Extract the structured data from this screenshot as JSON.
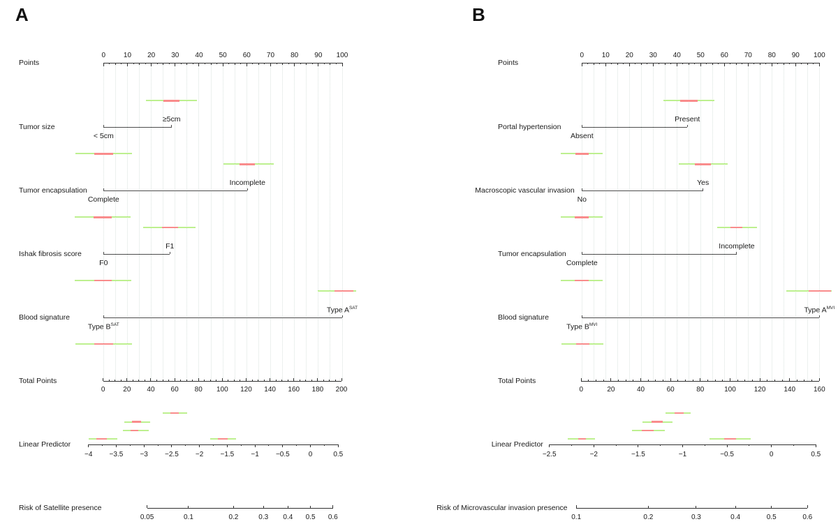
{
  "figure": {
    "background": "#ffffff"
  },
  "colors": {
    "density_green": "#bdf08f",
    "density_red": "#f98c8c",
    "gridline": "#d9e2de",
    "axis": "#303030",
    "bracket": "#4d4d4d",
    "text": "#1a1a1a"
  },
  "chart_data": [
    {
      "type": "nomogram",
      "panel": "A",
      "axes": {
        "points": {
          "label": "Points",
          "min": 0,
          "max": 100,
          "ticks": [
            {
              "v": 0,
              "label": "0"
            },
            {
              "v": 10,
              "label": "10"
            },
            {
              "v": 20,
              "label": "20"
            },
            {
              "v": 30,
              "label": "30"
            },
            {
              "v": 40,
              "label": "40"
            },
            {
              "v": 50,
              "label": "50"
            },
            {
              "v": 60,
              "label": "60"
            },
            {
              "v": 70,
              "label": "70"
            },
            {
              "v": 80,
              "label": "80"
            },
            {
              "v": 90,
              "label": "90"
            },
            {
              "v": 100,
              "label": "100"
            }
          ]
        },
        "total_points": {
          "label": "Total Points",
          "min": 0,
          "max": 200,
          "minor_step": 5,
          "major_step": 20,
          "ticks": [
            {
              "v": 0,
              "label": "0"
            },
            {
              "v": 20,
              "label": "20"
            },
            {
              "v": 40,
              "label": "40"
            },
            {
              "v": 60,
              "label": "60"
            },
            {
              "v": 80,
              "label": "80"
            },
            {
              "v": 100,
              "label": "100"
            },
            {
              "v": 120,
              "label": "120"
            },
            {
              "v": 140,
              "label": "140"
            },
            {
              "v": 160,
              "label": "160"
            },
            {
              "v": 180,
              "label": "180"
            },
            {
              "v": 200,
              "label": "200"
            }
          ]
        },
        "linear_predictor": {
          "label": "Linear Predictor",
          "min": -4,
          "max": 0.5,
          "minor_step": 0.25,
          "major_step": 0.5,
          "ticks": [
            {
              "v": -4,
              "label": "−4"
            },
            {
              "v": -3.5,
              "label": "−3.5"
            },
            {
              "v": -3,
              "label": "−3"
            },
            {
              "v": -2.5,
              "label": "−2.5"
            },
            {
              "v": -2,
              "label": "−2"
            },
            {
              "v": -1.5,
              "label": "−1.5"
            },
            {
              "v": -1,
              "label": "−1"
            },
            {
              "v": -0.5,
              "label": "−0.5"
            },
            {
              "v": 0,
              "label": "0"
            },
            {
              "v": 0.5,
              "label": "0.5"
            }
          ]
        },
        "risk": {
          "label": "Risk of Satellite presence",
          "scale": "logit",
          "ticks": [
            {
              "v": 0.05,
              "label": "0.05"
            },
            {
              "v": 0.1,
              "label": "0.1"
            },
            {
              "v": 0.2,
              "label": "0.2"
            },
            {
              "v": 0.3,
              "label": "0.3"
            },
            {
              "v": 0.4,
              "label": "0.4"
            },
            {
              "v": 0.5,
              "label": "0.5"
            },
            {
              "v": 0.6,
              "label": "0.6"
            }
          ]
        }
      },
      "variables": [
        {
          "name": "Tumor size",
          "levels": [
            {
              "label": "< 5cm",
              "sup": "",
              "points": 0
            },
            {
              "label": "≥5cm",
              "sup": "",
              "points": 28.5
            }
          ],
          "upper_density": {
            "lo": 17.9,
            "hi": 39.0,
            "red_lo": 25.2,
            "red_hi": 31.7
          },
          "lower_density": {
            "lo": -11.9,
            "hi": 11.8,
            "red_lo": -3.8,
            "red_hi": 3.9
          }
        },
        {
          "name": "Tumor encapsulation",
          "levels": [
            {
              "label": "Complete",
              "sup": "",
              "points": 0
            },
            {
              "label": "Incomplete",
              "sup": "",
              "points": 60.3
            }
          ],
          "upper_density": {
            "lo": 50.2,
            "hi": 71.2,
            "red_lo": 57.1,
            "red_hi": 63.5
          },
          "lower_density": {
            "lo": -12.2,
            "hi": 11.2,
            "red_lo": -4.1,
            "red_hi": 3.4
          }
        },
        {
          "name": "Ishak fibrosis score",
          "levels": [
            {
              "label": "F0",
              "sup": "",
              "points": 0
            },
            {
              "label": "F1",
              "sup": "",
              "points": 27.8
            }
          ],
          "upper_density": {
            "lo": 16.6,
            "hi": 38.5,
            "red_lo": 24.4,
            "red_hi": 31.2
          },
          "lower_density": {
            "lo": -12.0,
            "hi": 11.5,
            "red_lo": -4.0,
            "red_hi": 3.5
          }
        },
        {
          "name": "Blood signature",
          "levels": [
            {
              "label": "Type B",
              "sup": "SAT",
              "points": 0
            },
            {
              "label": "Type A",
              "sup": "SAT",
              "points": 100
            }
          ],
          "upper_density": {
            "lo": 89.7,
            "hi": 106.0,
            "red_lo": 96.9,
            "red_hi": 104.8
          },
          "lower_density": {
            "lo": -11.9,
            "hi": 11.8,
            "red_lo": -3.8,
            "red_hi": 3.9
          }
        }
      ],
      "total_densities": [
        {
          "lo": 50.1,
          "hi": 70.7,
          "red_lo": 56.6,
          "red_hi": 63.3
        },
        {
          "lo": 17.9,
          "hi": 39.4,
          "red_lo": 24.4,
          "red_hi": 31.6
        },
        {
          "lo": 16.6,
          "hi": 38.4,
          "red_lo": 22.8,
          "red_hi": 29.6
        },
        {
          "lo": -11.9,
          "hi": 11.7,
          "red_lo": -5.5,
          "red_hi": 3.3
        },
        {
          "lo": 89.6,
          "hi": 111.3,
          "red_lo": 96.0,
          "red_hi": 104.3
        }
      ]
    },
    {
      "type": "nomogram",
      "panel": "B",
      "axes": {
        "points": {
          "label": "Points",
          "min": 0,
          "max": 100,
          "ticks": [
            {
              "v": 0,
              "label": "0"
            },
            {
              "v": 10,
              "label": "10"
            },
            {
              "v": 20,
              "label": "20"
            },
            {
              "v": 30,
              "label": "30"
            },
            {
              "v": 40,
              "label": "40"
            },
            {
              "v": 50,
              "label": "50"
            },
            {
              "v": 60,
              "label": "60"
            },
            {
              "v": 70,
              "label": "70"
            },
            {
              "v": 80,
              "label": "80"
            },
            {
              "v": 90,
              "label": "90"
            },
            {
              "v": 100,
              "label": "100"
            }
          ]
        },
        "total_points": {
          "label": "Total Points",
          "min": 0,
          "max": 160,
          "minor_step": 5,
          "major_step": 20,
          "ticks": [
            {
              "v": 0,
              "label": "0"
            },
            {
              "v": 20,
              "label": "20"
            },
            {
              "v": 40,
              "label": "40"
            },
            {
              "v": 60,
              "label": "60"
            },
            {
              "v": 80,
              "label": "80"
            },
            {
              "v": 100,
              "label": "100"
            },
            {
              "v": 120,
              "label": "120"
            },
            {
              "v": 140,
              "label": "140"
            },
            {
              "v": 160,
              "label": "160"
            }
          ]
        },
        "linear_predictor": {
          "label": "Linear Predictor",
          "min": -2.5,
          "max": 0.5,
          "minor_step": 0.25,
          "major_step": 0.5,
          "ticks": [
            {
              "v": -2.5,
              "label": "−2.5"
            },
            {
              "v": -2,
              "label": "−2"
            },
            {
              "v": -1.5,
              "label": "−1.5"
            },
            {
              "v": -1,
              "label": "−1"
            },
            {
              "v": -0.5,
              "label": "−0.5"
            },
            {
              "v": 0,
              "label": "0"
            },
            {
              "v": 0.5,
              "label": "0.5"
            }
          ]
        },
        "risk": {
          "label": "Risk of Microvascular invasion presence",
          "scale": "logit",
          "ticks": [
            {
              "v": 0.1,
              "label": "0.1"
            },
            {
              "v": 0.2,
              "label": "0.2"
            },
            {
              "v": 0.3,
              "label": "0.3"
            },
            {
              "v": 0.4,
              "label": "0.4"
            },
            {
              "v": 0.5,
              "label": "0.5"
            },
            {
              "v": 0.6,
              "label": "0.6"
            }
          ]
        }
      },
      "variables": [
        {
          "name": "Portal hypertension",
          "levels": [
            {
              "label": "Absent",
              "sup": "",
              "points": 0
            },
            {
              "label": "Present",
              "sup": "",
              "points": 44.4
            }
          ],
          "upper_density": {
            "lo": 34.3,
            "hi": 55.7,
            "red_lo": 41.4,
            "red_hi": 48.8
          },
          "lower_density": {
            "lo": -8.8,
            "hi": 8.8,
            "red_lo": -2.7,
            "red_hi": 2.9
          }
        },
        {
          "name": "Macroscopic vascular invasion",
          "levels": [
            {
              "label": "No",
              "sup": "",
              "points": 0
            },
            {
              "label": "Yes",
              "sup": "",
              "points": 51.0
            }
          ],
          "upper_density": {
            "lo": 40.9,
            "hi": 61.3,
            "red_lo": 47.6,
            "red_hi": 54.4
          },
          "lower_density": {
            "lo": -9.0,
            "hi": 8.8,
            "red_lo": -2.9,
            "red_hi": 2.8
          }
        },
        {
          "name": "Tumor encapsulation",
          "levels": [
            {
              "label": "Complete",
              "sup": "",
              "points": 0
            },
            {
              "label": "Incomplete",
              "sup": "",
              "points": 65.2
            }
          ],
          "upper_density": {
            "lo": 56.9,
            "hi": 73.7,
            "red_lo": 62.5,
            "red_hi": 67.6
          },
          "lower_density": {
            "lo": -9.0,
            "hi": 8.8,
            "red_lo": -2.9,
            "red_hi": 2.8
          }
        },
        {
          "name": "Blood signature",
          "levels": [
            {
              "label": "Type B",
              "sup": "MVI",
              "points": 0
            },
            {
              "label": "Type A",
              "sup": "MVI",
              "points": 100
            }
          ],
          "upper_density": {
            "lo": 86.1,
            "hi": 105.1,
            "red_lo": 95.6,
            "red_hi": 104.9
          },
          "lower_density": {
            "lo": -8.7,
            "hi": 8.9,
            "red_lo": -2.4,
            "red_hi": 3.2
          }
        }
      ],
      "total_densities": [
        {
          "lo": 56.5,
          "hi": 73.7,
          "red_lo": 62.6,
          "red_hi": 68.9
        },
        {
          "lo": 41.2,
          "hi": 61.5,
          "red_lo": 47.4,
          "red_hi": 54.8
        },
        {
          "lo": 34.1,
          "hi": 56.1,
          "red_lo": 40.8,
          "red_hi": 48.5
        },
        {
          "lo": -8.9,
          "hi": 9.1,
          "red_lo": -2.2,
          "red_hi": 3.1
        },
        {
          "lo": 86.2,
          "hi": 113.9,
          "red_lo": 95.9,
          "red_hi": 104.2
        }
      ]
    }
  ]
}
